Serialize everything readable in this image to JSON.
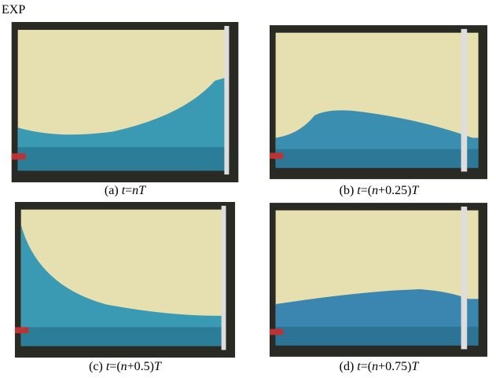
{
  "label": "EXP",
  "panels": [
    {
      "caption": [
        {
          "text": "(a) ",
          "italic": false
        },
        {
          "text": "t",
          "italic": true
        },
        {
          "text": "=",
          "italic": false
        },
        {
          "text": "nT",
          "italic": true
        }
      ]
    },
    {
      "caption": [
        {
          "text": "(b) ",
          "italic": false
        },
        {
          "text": "t",
          "italic": true
        },
        {
          "text": "=(",
          "italic": false
        },
        {
          "text": "n",
          "italic": true
        },
        {
          "text": "+0.25)",
          "italic": false
        },
        {
          "text": "T",
          "italic": true
        }
      ]
    },
    {
      "caption": [
        {
          "text": "(c) ",
          "italic": false
        },
        {
          "text": "t",
          "italic": true
        },
        {
          "text": "=(",
          "italic": false
        },
        {
          "text": "n",
          "italic": true
        },
        {
          "text": "+0.5)",
          "italic": false
        },
        {
          "text": "T",
          "italic": true
        }
      ]
    },
    {
      "caption": [
        {
          "text": "(d) ",
          "italic": false
        },
        {
          "text": "t",
          "italic": true
        },
        {
          "text": "=(",
          "italic": false
        },
        {
          "text": "n",
          "italic": true
        },
        {
          "text": "+0.75)",
          "italic": false
        },
        {
          "text": "T",
          "italic": true
        }
      ]
    }
  ]
}
